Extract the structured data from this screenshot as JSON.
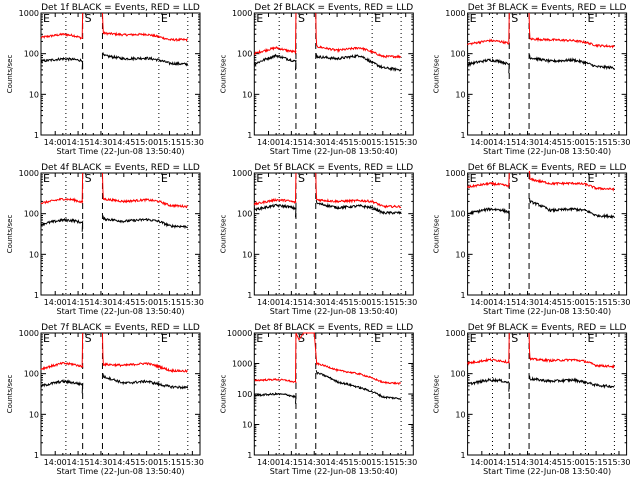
{
  "chart_data": [
    {
      "type": "line",
      "title": "Det 1f BLACK = Events, RED = LLD",
      "ylabel": "Counts/sec",
      "xlabel": "Start Time (22-Jun-08 13:50:40)",
      "yscale": "log",
      "ylim": [
        1,
        1000
      ],
      "yticks": [
        "1",
        "10",
        "100",
        "1000"
      ],
      "xticks": [
        "14:00",
        "14:15",
        "14:30",
        "14:45",
        "15:00",
        "15:15",
        "15:30"
      ],
      "markers": {
        "E1": "14:07",
        "S1": "14:18",
        "S2": "14:31",
        "E2": "15:08",
        "E3": "15:27"
      },
      "series": [
        {
          "name": "LLD",
          "color": "#ff0000",
          "pre": [
            250,
            300,
            280,
            240
          ],
          "post": [
            320,
            290,
            300,
            260,
            220,
            220
          ]
        },
        {
          "name": "Events",
          "color": "#000000",
          "pre": [
            65,
            75,
            72,
            68
          ],
          "post": [
            90,
            75,
            78,
            70,
            58,
            55
          ]
        }
      ]
    },
    {
      "type": "line",
      "title": "Det 2f BLACK = Events, RED = LLD",
      "ylabel": "Counts/sec",
      "xlabel": "Start Time (22-Jun-08 13:50:40)",
      "yscale": "log",
      "ylim": [
        1,
        1000
      ],
      "yticks": [
        "1",
        "10",
        "100",
        "1000"
      ],
      "xticks": [
        "14:00",
        "14:15",
        "14:30",
        "14:45",
        "15:00",
        "15:15",
        "15:30"
      ],
      "markers": {
        "E1": "14:07",
        "S1": "14:18",
        "S2": "14:31",
        "E2": "15:08",
        "E3": "15:27"
      },
      "series": [
        {
          "name": "LLD",
          "color": "#ff0000",
          "pre": [
            100,
            140,
            120,
            110
          ],
          "post": [
            150,
            120,
            140,
            110,
            85,
            85
          ]
        },
        {
          "name": "Events",
          "color": "#000000",
          "pre": [
            55,
            90,
            75,
            65
          ],
          "post": [
            85,
            75,
            90,
            60,
            45,
            40
          ]
        }
      ]
    },
    {
      "type": "line",
      "title": "Det 3f BLACK = Events, RED = LLD",
      "ylabel": "Counts/sec",
      "xlabel": "Start Time (22-Jun-08 13:50:40)",
      "yscale": "log",
      "ylim": [
        1,
        1000
      ],
      "yticks": [
        "1",
        "10",
        "100",
        "1000"
      ],
      "xticks": [
        "14:00",
        "14:15",
        "14:30",
        "14:45",
        "15:00",
        "15:15",
        "15:30"
      ],
      "markers": {
        "E1": "14:07",
        "S1": "14:18",
        "S2": "14:31",
        "E2": "15:08",
        "E3": "15:27"
      },
      "series": [
        {
          "name": "LLD",
          "color": "#ff0000",
          "pre": [
            170,
            210,
            200,
            180
          ],
          "post": [
            230,
            220,
            210,
            190,
            160,
            150
          ]
        },
        {
          "name": "Events",
          "color": "#000000",
          "pre": [
            55,
            70,
            65,
            55
          ],
          "post": [
            80,
            65,
            70,
            60,
            48,
            45
          ]
        }
      ]
    },
    {
      "type": "line",
      "title": "Det 4f BLACK = Events, RED = LLD",
      "ylabel": "Counts/sec",
      "xlabel": "Start Time (22-Jun-08 13:50:40)",
      "yscale": "log",
      "ylim": [
        1,
        1000
      ],
      "yticks": [
        "1",
        "10",
        "100",
        "1000"
      ],
      "xticks": [
        "14:00",
        "14:15",
        "14:30",
        "14:45",
        "15:00",
        "15:15",
        "15:30"
      ],
      "markers": {
        "E1": "14:07",
        "S1": "14:18",
        "S2": "14:31",
        "E2": "15:08",
        "E3": "15:27"
      },
      "series": [
        {
          "name": "LLD",
          "color": "#ff0000",
          "pre": [
            180,
            230,
            220,
            190
          ],
          "post": [
            230,
            200,
            220,
            200,
            160,
            150
          ]
        },
        {
          "name": "Events",
          "color": "#000000",
          "pre": [
            55,
            70,
            68,
            60
          ],
          "post": [
            75,
            65,
            72,
            65,
            50,
            48
          ]
        }
      ]
    },
    {
      "type": "line",
      "title": "Det 5f BLACK = Events, RED = LLD",
      "ylabel": "Counts/sec",
      "xlabel": "Start Time (22-Jun-08 13:50:40)",
      "yscale": "log",
      "ylim": [
        1,
        1000
      ],
      "yticks": [
        "1",
        "10",
        "100",
        "1000"
      ],
      "xticks": [
        "14:00",
        "14:15",
        "14:30",
        "14:45",
        "15:00",
        "15:15",
        "15:30"
      ],
      "markers": {
        "E1": "14:07",
        "S1": "14:18",
        "S2": "14:31",
        "E2": "15:08",
        "E3": "15:27"
      },
      "series": [
        {
          "name": "LLD",
          "color": "#ff0000",
          "pre": [
            170,
            220,
            210,
            190
          ],
          "post": [
            220,
            200,
            210,
            200,
            150,
            150
          ]
        },
        {
          "name": "Events",
          "color": "#000000",
          "pre": [
            125,
            160,
            150,
            135
          ],
          "post": [
            180,
            140,
            155,
            140,
            105,
            105
          ]
        }
      ]
    },
    {
      "type": "line",
      "title": "Det 6f BLACK = Events, RED = LLD",
      "ylabel": "Counts/sec",
      "xlabel": "Start Time (22-Jun-08 13:50:40)",
      "yscale": "log",
      "ylim": [
        1,
        1000
      ],
      "yticks": [
        "1",
        "10",
        "100",
        "1000"
      ],
      "xticks": [
        "14:00",
        "14:15",
        "14:30",
        "14:45",
        "15:00",
        "15:15",
        "15:30"
      ],
      "markers": {
        "E1": "14:07",
        "S1": "14:18",
        "S2": "14:31",
        "E2": "15:08",
        "E3": "15:27"
      },
      "series": [
        {
          "name": "LLD",
          "color": "#ff0000",
          "pre": [
            450,
            550,
            520,
            480
          ],
          "post": [
            700,
            550,
            560,
            530,
            420,
            400
          ]
        },
        {
          "name": "Events",
          "color": "#000000",
          "pre": [
            100,
            130,
            125,
            110
          ],
          "post": [
            200,
            120,
            130,
            120,
            90,
            85
          ]
        }
      ]
    },
    {
      "type": "line",
      "title": "Det 7f BLACK = Events, RED = LLD",
      "ylabel": "Counts/sec",
      "xlabel": "Start Time (22-Jun-08 13:50:40)",
      "yscale": "log",
      "ylim": [
        1,
        1000
      ],
      "yticks": [
        "1",
        "10",
        "100",
        "1000"
      ],
      "xticks": [
        "14:00",
        "14:15",
        "14:30",
        "14:45",
        "15:00",
        "15:15",
        "15:30"
      ],
      "markers": {
        "E1": "14:07",
        "S1": "14:18",
        "S2": "14:31",
        "E2": "15:08",
        "E3": "15:27"
      },
      "series": [
        {
          "name": "LLD",
          "color": "#ff0000",
          "pre": [
            130,
            180,
            170,
            150
          ],
          "post": [
            170,
            160,
            180,
            150,
            120,
            115
          ]
        },
        {
          "name": "Events",
          "color": "#000000",
          "pre": [
            50,
            65,
            60,
            55
          ],
          "post": [
            85,
            58,
            65,
            55,
            48,
            45
          ]
        }
      ]
    },
    {
      "type": "line",
      "title": "Det 8f BLACK = Events, RED = LLD",
      "ylabel": "Counts/sec",
      "xlabel": "Start Time (22-Jun-08 13:50:40)",
      "yscale": "log",
      "ylim": [
        1,
        10000
      ],
      "yticks": [
        "1",
        "10",
        "100",
        "1000",
        "10000"
      ],
      "xticks": [
        "14:00",
        "14:15",
        "14:30",
        "14:45",
        "15:00",
        "15:15",
        "15:30"
      ],
      "markers": {
        "E1": "14:07",
        "S1": "14:18",
        "S2": "14:31",
        "E2": "15:08",
        "E3": "15:27"
      },
      "series": [
        {
          "name": "LLD",
          "color": "#ff0000",
          "pre": [
            280,
            300,
            280,
            240
          ],
          "peak": 10000,
          "post": [
            1000,
            600,
            450,
            330,
            240,
            220
          ]
        },
        {
          "name": "Events",
          "color": "#000000",
          "pre": [
            90,
            100,
            95,
            80
          ],
          "post": [
            500,
            250,
            160,
            120,
            80,
            70
          ]
        }
      ]
    },
    {
      "type": "line",
      "title": "Det 9f BLACK = Events, RED = LLD",
      "ylabel": "Counts/sec",
      "xlabel": "Start Time (22-Jun-08 13:50:40)",
      "yscale": "log",
      "ylim": [
        1,
        1000
      ],
      "yticks": [
        "1",
        "10",
        "100",
        "1000"
      ],
      "xticks": [
        "14:00",
        "14:15",
        "14:30",
        "14:45",
        "15:00",
        "15:15",
        "15:30"
      ],
      "markers": {
        "E1": "14:07",
        "S1": "14:18",
        "S2": "14:31",
        "E2": "15:08",
        "E3": "15:27"
      },
      "series": [
        {
          "name": "LLD",
          "color": "#ff0000",
          "pre": [
            180,
            220,
            210,
            190
          ],
          "post": [
            230,
            210,
            220,
            200,
            160,
            150
          ]
        },
        {
          "name": "Events",
          "color": "#000000",
          "pre": [
            55,
            70,
            68,
            60
          ],
          "post": [
            75,
            65,
            70,
            62,
            52,
            48
          ]
        }
      ]
    }
  ]
}
